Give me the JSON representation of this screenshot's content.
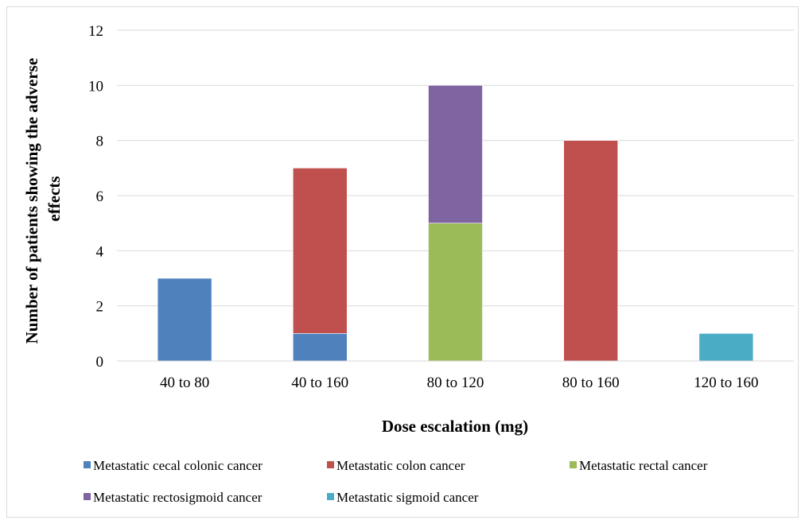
{
  "chart_data": {
    "type": "bar",
    "stacked": true,
    "title": "",
    "xlabel": "Dose escalation (mg)",
    "ylabel": "Number of patients showing the adverse effects",
    "ylabel_lines": [
      "Number of patients showing the adverse",
      "effects"
    ],
    "ylim": [
      0,
      12
    ],
    "yticks": [
      0,
      2,
      4,
      6,
      8,
      10,
      12
    ],
    "grid": true,
    "legend_position": "bottom",
    "categories": [
      "40 to 80",
      "40 to 160",
      "80 to 120",
      "80 to 160",
      "120 to 160"
    ],
    "series": [
      {
        "name": "Metastatic cecal colonic cancer",
        "color": "#4F81BD",
        "values": [
          3,
          1,
          0,
          0,
          0
        ]
      },
      {
        "name": "Metastatic colon cancer",
        "color": "#C0504D",
        "values": [
          0,
          6,
          0,
          8,
          0
        ]
      },
      {
        "name": "Metastatic rectal cancer",
        "color": "#9BBB59",
        "values": [
          0,
          0,
          5,
          0,
          0
        ]
      },
      {
        "name": "Metastatic rectosigmoid cancer",
        "color": "#8064A2",
        "values": [
          0,
          0,
          5,
          0,
          0
        ]
      },
      {
        "name": "Metastatic sigmoid cancer",
        "color": "#4BACC6",
        "values": [
          0,
          0,
          0,
          0,
          1
        ]
      }
    ]
  }
}
